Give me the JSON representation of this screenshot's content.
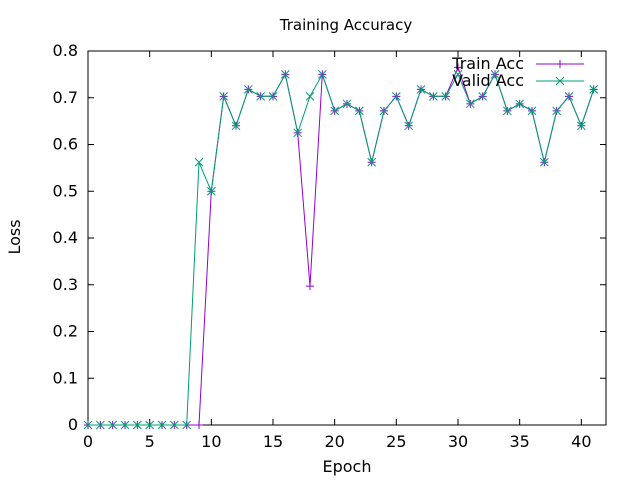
{
  "chart_data": {
    "type": "line",
    "title": "Training Accuracy",
    "xlabel": "Epoch",
    "ylabel": "Loss",
    "xlim": [
      0,
      42
    ],
    "ylim": [
      0,
      0.8
    ],
    "x_ticks": [
      0,
      5,
      10,
      15,
      20,
      25,
      30,
      35,
      40
    ],
    "y_ticks": [
      0,
      0.1,
      0.2,
      0.3,
      0.4,
      0.5,
      0.6,
      0.7,
      0.8
    ],
    "x_tick_labels": [
      "0",
      "5",
      "10",
      "15",
      "20",
      "25",
      "30",
      "35",
      "40"
    ],
    "y_tick_labels": [
      "0",
      "0.1",
      "0.2",
      "0.3",
      "0.4",
      "0.5",
      "0.6",
      "0.7",
      "0.8"
    ],
    "legend_position": "top-right",
    "grid": false,
    "x": [
      0,
      1,
      2,
      3,
      4,
      5,
      6,
      7,
      8,
      9,
      10,
      11,
      12,
      13,
      14,
      15,
      16,
      17,
      18,
      19,
      20,
      21,
      22,
      23,
      24,
      25,
      26,
      27,
      28,
      29,
      30,
      31,
      32,
      33,
      34,
      35,
      36,
      37,
      38,
      39,
      40,
      41
    ],
    "series": [
      {
        "name": "Train Acc",
        "color": "#9400d3",
        "marker": "plus",
        "values": [
          0,
          0,
          0,
          0,
          0,
          0,
          0,
          0,
          0,
          0,
          0.5,
          0.703,
          0.64,
          0.718,
          0.703,
          0.703,
          0.75,
          0.625,
          0.297,
          0.75,
          0.672,
          0.687,
          0.672,
          0.562,
          0.672,
          0.703,
          0.64,
          0.718,
          0.703,
          0.703,
          0.765,
          0.687,
          0.703,
          0.75,
          0.672,
          0.687,
          0.672,
          0.562,
          0.672,
          0.703,
          0.64,
          0.718
        ]
      },
      {
        "name": "Valid Acc",
        "color": "#009e73",
        "marker": "cross",
        "values": [
          0,
          0,
          0,
          0,
          0,
          0,
          0,
          0,
          0,
          0.562,
          0.5,
          0.703,
          0.64,
          0.718,
          0.703,
          0.703,
          0.75,
          0.625,
          0.703,
          0.75,
          0.672,
          0.687,
          0.672,
          0.562,
          0.672,
          0.703,
          0.64,
          0.718,
          0.703,
          0.703,
          0.75,
          0.687,
          0.703,
          0.75,
          0.672,
          0.687,
          0.672,
          0.562,
          0.672,
          0.703,
          0.64,
          0.718
        ]
      }
    ]
  }
}
